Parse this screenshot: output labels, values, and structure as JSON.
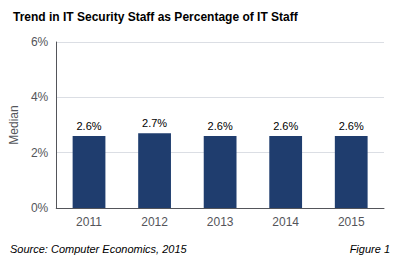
{
  "chart_data": {
    "type": "bar",
    "title": "Trend in IT Security Staff as Percentage of IT Staff",
    "categories": [
      "2011",
      "2012",
      "2013",
      "2014",
      "2015"
    ],
    "values": [
      2.6,
      2.7,
      2.6,
      2.6,
      2.6
    ],
    "value_labels": [
      "2.6%",
      "2.7%",
      "2.6%",
      "2.6%",
      "2.6%"
    ],
    "data_labels": true,
    "color": "#1F3D6E",
    "ylabel": "Median",
    "ylim": [
      0,
      6
    ],
    "yticks": [
      {
        "value": 0,
        "label": "0%"
      },
      {
        "value": 2,
        "label": "2%"
      },
      {
        "value": 4,
        "label": "4%"
      },
      {
        "value": 6,
        "label": "6%"
      }
    ],
    "grid": true,
    "annotations": [
      "Source: Computer Economics, 2015",
      "Figure 1"
    ]
  }
}
